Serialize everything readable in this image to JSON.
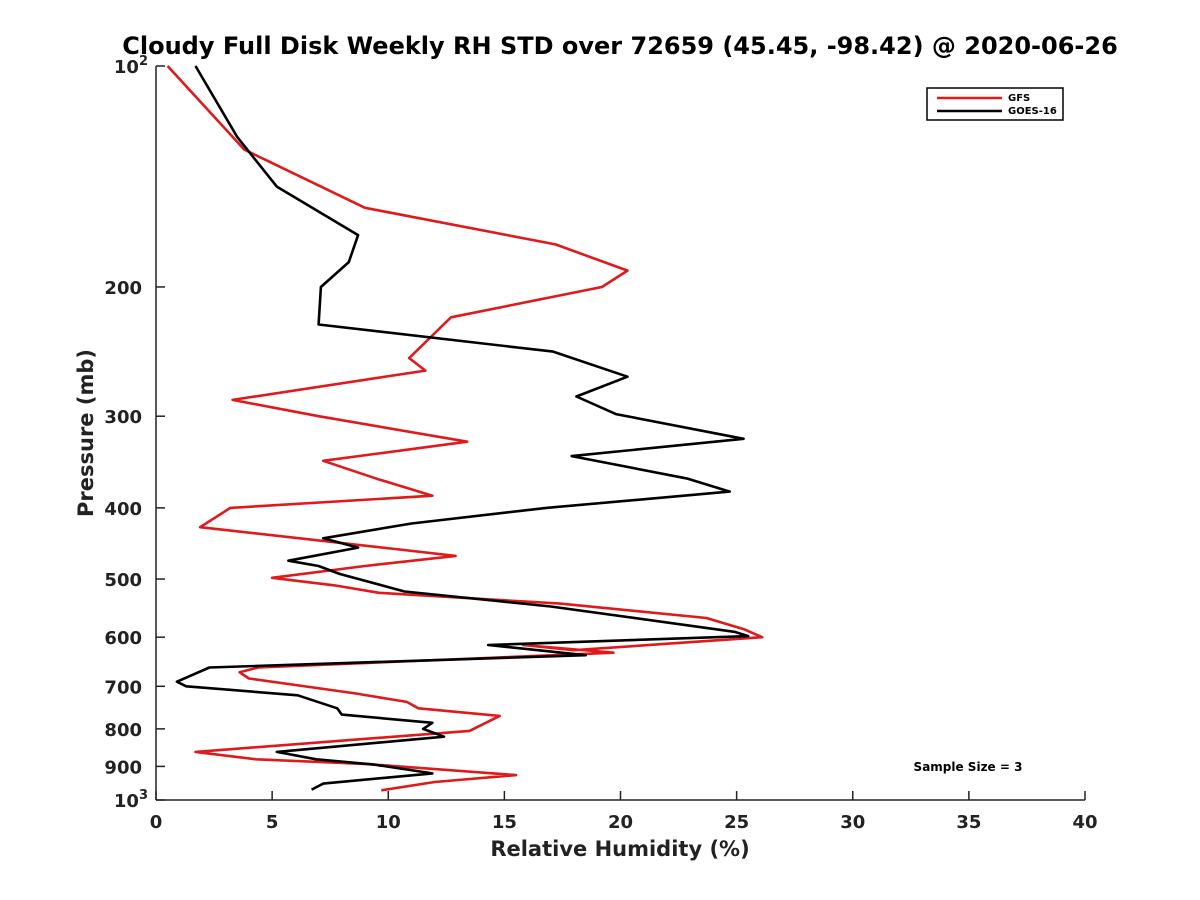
{
  "chart_data": {
    "type": "line",
    "title": "Cloudy Full Disk Weekly RH STD over 72659 (45.45, -98.42) @ 2020-06-26",
    "xlabel": "Relative Humidity (%)",
    "ylabel": "Pressure (mb)",
    "xlim": [
      0,
      40
    ],
    "ylim": [
      1000,
      100
    ],
    "yscale": "log",
    "grid": false,
    "legend_position": "top-right",
    "x_ticks": [
      0,
      5,
      10,
      15,
      20,
      25,
      30,
      35,
      40
    ],
    "y_ticks": [
      {
        "value": 100,
        "label": "10",
        "sup": "2"
      },
      {
        "value": 200,
        "label": "200"
      },
      {
        "value": 300,
        "label": "300"
      },
      {
        "value": 400,
        "label": "400"
      },
      {
        "value": 500,
        "label": "500"
      },
      {
        "value": 600,
        "label": "600"
      },
      {
        "value": 700,
        "label": "700"
      },
      {
        "value": 800,
        "label": "800"
      },
      {
        "value": 900,
        "label": "900"
      },
      {
        "value": 1000,
        "label": "10",
        "sup": "3"
      }
    ],
    "annotation": "Sample Size = 3",
    "series": [
      {
        "name": "GFS",
        "color": "#e0191b",
        "points": [
          [
            0.5,
            100
          ],
          [
            3.8,
            130
          ],
          [
            9.0,
            156
          ],
          [
            17.2,
            175
          ],
          [
            20.3,
            190
          ],
          [
            19.2,
            200
          ],
          [
            12.7,
            220
          ],
          [
            10.9,
            250
          ],
          [
            11.6,
            260
          ],
          [
            3.3,
            285
          ],
          [
            7.0,
            300
          ],
          [
            13.4,
            325
          ],
          [
            7.2,
            345
          ],
          [
            9.5,
            365
          ],
          [
            11.9,
            385
          ],
          [
            3.2,
            400
          ],
          [
            1.9,
            425
          ],
          [
            10.3,
            455
          ],
          [
            12.9,
            465
          ],
          [
            9.0,
            480
          ],
          [
            5.0,
            498
          ],
          [
            7.7,
            510
          ],
          [
            9.6,
            522
          ],
          [
            17.4,
            540
          ],
          [
            23.7,
            565
          ],
          [
            25.3,
            585
          ],
          [
            26.1,
            600
          ],
          [
            18.0,
            625
          ],
          [
            15.8,
            615
          ],
          [
            19.7,
            630
          ],
          [
            4.4,
            660
          ],
          [
            3.6,
            670
          ],
          [
            4.0,
            683
          ],
          [
            8.5,
            715
          ],
          [
            10.8,
            735
          ],
          [
            11.3,
            750
          ],
          [
            14.8,
            768
          ],
          [
            13.5,
            805
          ],
          [
            1.7,
            860
          ],
          [
            4.3,
            880
          ],
          [
            9.0,
            893
          ],
          [
            15.5,
            925
          ],
          [
            12.0,
            945
          ],
          [
            9.7,
            970
          ]
        ]
      },
      {
        "name": "GOES-16",
        "color": "#000000",
        "points": [
          [
            1.7,
            100
          ],
          [
            3.5,
            125
          ],
          [
            5.2,
            146
          ],
          [
            8.7,
            170
          ],
          [
            8.3,
            185
          ],
          [
            7.1,
            200
          ],
          [
            7.0,
            225
          ],
          [
            17.1,
            245
          ],
          [
            20.3,
            265
          ],
          [
            18.1,
            282
          ],
          [
            19.8,
            298
          ],
          [
            25.3,
            322
          ],
          [
            17.9,
            340
          ],
          [
            22.9,
            365
          ],
          [
            24.7,
            380
          ],
          [
            16.8,
            400
          ],
          [
            11.0,
            420
          ],
          [
            7.2,
            440
          ],
          [
            8.7,
            453
          ],
          [
            5.7,
            472
          ],
          [
            7.0,
            480
          ],
          [
            7.9,
            492
          ],
          [
            10.7,
            520
          ],
          [
            17.0,
            545
          ],
          [
            24.9,
            590
          ],
          [
            25.5,
            598
          ],
          [
            14.3,
            615
          ],
          [
            18.5,
            635
          ],
          [
            2.3,
            660
          ],
          [
            0.9,
            690
          ],
          [
            1.3,
            700
          ],
          [
            6.1,
            720
          ],
          [
            7.8,
            750
          ],
          [
            8.0,
            765
          ],
          [
            11.9,
            785
          ],
          [
            11.5,
            800
          ],
          [
            12.4,
            820
          ],
          [
            5.2,
            860
          ],
          [
            6.9,
            880
          ],
          [
            9.4,
            895
          ],
          [
            11.9,
            920
          ],
          [
            7.2,
            950
          ],
          [
            6.7,
            968
          ]
        ]
      }
    ]
  }
}
